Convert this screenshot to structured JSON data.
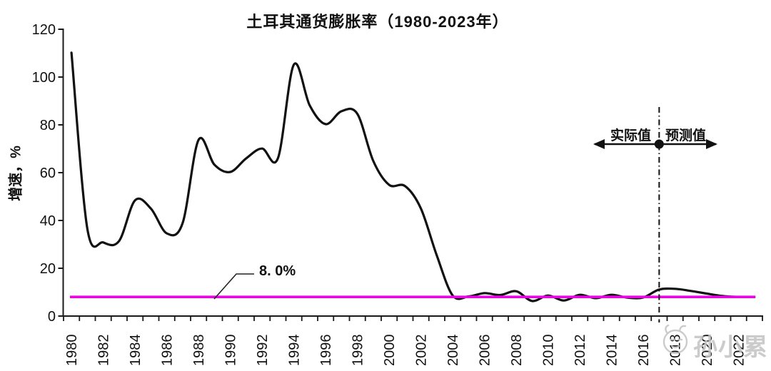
{
  "title": "土耳其通货膨胀率（1980-2023年）",
  "y_axis_label": "增速，%",
  "annotations": {
    "target_label": "8. 0%",
    "actual_label": "实际值",
    "forecast_label": "预测值"
  },
  "watermark": "孙小累",
  "colors": {
    "curve": "#111111",
    "target_line": "#e807e0",
    "axis": "#1a1a1a",
    "watermark": "#c3c3c3"
  },
  "chart_data": {
    "type": "line",
    "title": "土耳其通货膨胀率（1980-2023年）",
    "xlabel": "",
    "ylabel": "增速，%",
    "ylim": [
      0,
      120
    ],
    "y_ticks": [
      0,
      20,
      40,
      60,
      80,
      100,
      120
    ],
    "x_label_years": [
      1980,
      1982,
      1984,
      1986,
      1988,
      1990,
      1992,
      1994,
      1996,
      1998,
      2000,
      2002,
      2004,
      2006,
      2008,
      2010,
      2012,
      2014,
      2016,
      2018,
      2020,
      2022
    ],
    "grid": false,
    "legend_position": "none",
    "x": [
      1980,
      1981,
      1982,
      1983,
      1984,
      1985,
      1986,
      1987,
      1988,
      1989,
      1990,
      1991,
      1992,
      1993,
      1994,
      1995,
      1996,
      1997,
      1998,
      1999,
      2000,
      2001,
      2002,
      2003,
      2004,
      2005,
      2006,
      2007,
      2008,
      2009,
      2010,
      2011,
      2012,
      2013,
      2014,
      2015,
      2016,
      2017,
      2018,
      2019,
      2020,
      2021,
      2022,
      2023
    ],
    "series": [
      {
        "name": "土耳其通货膨胀率",
        "values": [
          110.2,
          36.6,
          30.8,
          31.4,
          48.4,
          45.0,
          34.6,
          38.9,
          73.7,
          63.3,
          60.3,
          66.0,
          70.1,
          66.1,
          105.2,
          88.1,
          80.3,
          85.7,
          84.6,
          64.9,
          54.9,
          54.4,
          45.0,
          25.3,
          8.6,
          8.2,
          9.6,
          8.8,
          10.4,
          6.3,
          8.6,
          6.5,
          8.9,
          7.5,
          8.9,
          7.7,
          7.8,
          11.1,
          11.4,
          10.5,
          9.4,
          8.4,
          8.0,
          8.0
        ]
      }
    ],
    "reference_line": {
      "value": 8.0,
      "label": "8. 0%"
    },
    "forecast_divider": {
      "year": 2017,
      "left_label": "实际值",
      "right_label": "预测值"
    }
  }
}
